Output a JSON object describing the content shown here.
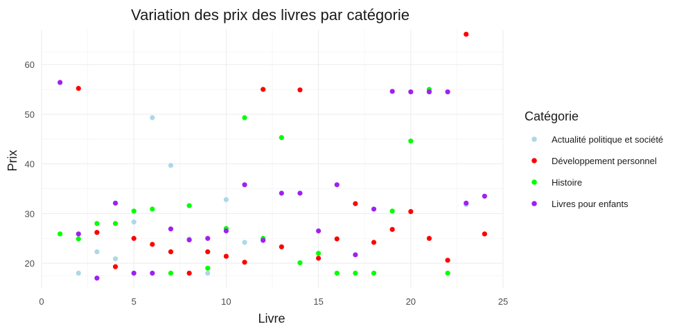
{
  "chart_data": {
    "type": "scatter",
    "title": "Variation des prix des livres par catégorie",
    "xlabel": "Livre",
    "ylabel": "Prix",
    "xlim": [
      0,
      25
    ],
    "ylim": [
      15,
      67
    ],
    "xticks": [
      0,
      5,
      10,
      15,
      20,
      25
    ],
    "yticks": [
      20,
      30,
      40,
      50,
      60
    ],
    "grid": true,
    "legend": {
      "title": "Catégorie",
      "position": "right"
    },
    "series": [
      {
        "name": "Actualité politique et société",
        "color": "#add8e6",
        "points": [
          {
            "x": 2,
            "y": 18
          },
          {
            "x": 3,
            "y": 22.3
          },
          {
            "x": 4,
            "y": 20.9
          },
          {
            "x": 5,
            "y": 28.3
          },
          {
            "x": 6,
            "y": 49.3
          },
          {
            "x": 7,
            "y": 39.7
          },
          {
            "x": 8,
            "y": 24.9
          },
          {
            "x": 9,
            "y": 18
          },
          {
            "x": 10,
            "y": 32.8
          },
          {
            "x": 11,
            "y": 24.2
          },
          {
            "x": 23,
            "y": 31.8
          }
        ]
      },
      {
        "name": "Développement personnel",
        "color": "#ff0000",
        "points": [
          {
            "x": 2,
            "y": 55.2
          },
          {
            "x": 3,
            "y": 26.2
          },
          {
            "x": 4,
            "y": 19.3
          },
          {
            "x": 5,
            "y": 25
          },
          {
            "x": 6,
            "y": 23.8
          },
          {
            "x": 7,
            "y": 22.3
          },
          {
            "x": 8,
            "y": 18
          },
          {
            "x": 9,
            "y": 22.3
          },
          {
            "x": 10,
            "y": 21.4
          },
          {
            "x": 11,
            "y": 20.2
          },
          {
            "x": 12,
            "y": 55
          },
          {
            "x": 13,
            "y": 23.3
          },
          {
            "x": 14,
            "y": 54.9
          },
          {
            "x": 15,
            "y": 21
          },
          {
            "x": 16,
            "y": 24.9
          },
          {
            "x": 17,
            "y": 32
          },
          {
            "x": 18,
            "y": 24.2
          },
          {
            "x": 19,
            "y": 26.8
          },
          {
            "x": 20,
            "y": 30.4
          },
          {
            "x": 21,
            "y": 25
          },
          {
            "x": 22,
            "y": 20.6
          },
          {
            "x": 23,
            "y": 66.1
          },
          {
            "x": 24,
            "y": 25.9
          }
        ]
      },
      {
        "name": "Histoire",
        "color": "#00ff00",
        "points": [
          {
            "x": 1,
            "y": 25.9
          },
          {
            "x": 2,
            "y": 24.9
          },
          {
            "x": 3,
            "y": 28
          },
          {
            "x": 4,
            "y": 28
          },
          {
            "x": 5,
            "y": 30.5
          },
          {
            "x": 6,
            "y": 30.9
          },
          {
            "x": 7,
            "y": 18
          },
          {
            "x": 8,
            "y": 31.6
          },
          {
            "x": 9,
            "y": 19
          },
          {
            "x": 10,
            "y": 27
          },
          {
            "x": 11,
            "y": 49.3
          },
          {
            "x": 12,
            "y": 25
          },
          {
            "x": 13,
            "y": 45.3
          },
          {
            "x": 14,
            "y": 20.1
          },
          {
            "x": 15,
            "y": 22
          },
          {
            "x": 16,
            "y": 18
          },
          {
            "x": 17,
            "y": 18
          },
          {
            "x": 18,
            "y": 18
          },
          {
            "x": 19,
            "y": 30.5
          },
          {
            "x": 20,
            "y": 44.6
          },
          {
            "x": 21,
            "y": 55
          },
          {
            "x": 22,
            "y": 18
          }
        ]
      },
      {
        "name": "Livres pour enfants",
        "color": "#a020f0",
        "points": [
          {
            "x": 1,
            "y": 56.4
          },
          {
            "x": 2,
            "y": 25.9
          },
          {
            "x": 3,
            "y": 17
          },
          {
            "x": 4,
            "y": 32.1
          },
          {
            "x": 5,
            "y": 18
          },
          {
            "x": 6,
            "y": 18
          },
          {
            "x": 7,
            "y": 26.9
          },
          {
            "x": 8,
            "y": 24.7
          },
          {
            "x": 9,
            "y": 25
          },
          {
            "x": 10,
            "y": 26.5
          },
          {
            "x": 11,
            "y": 35.8
          },
          {
            "x": 12,
            "y": 24.6
          },
          {
            "x": 13,
            "y": 34.1
          },
          {
            "x": 14,
            "y": 34.1
          },
          {
            "x": 15,
            "y": 26.5
          },
          {
            "x": 16,
            "y": 35.8
          },
          {
            "x": 17,
            "y": 21.7
          },
          {
            "x": 18,
            "y": 30.9
          },
          {
            "x": 19,
            "y": 54.6
          },
          {
            "x": 20,
            "y": 54.5
          },
          {
            "x": 21,
            "y": 54.5
          },
          {
            "x": 22,
            "y": 54.5
          },
          {
            "x": 23,
            "y": 32.1
          },
          {
            "x": 24,
            "y": 33.5
          }
        ]
      }
    ]
  }
}
